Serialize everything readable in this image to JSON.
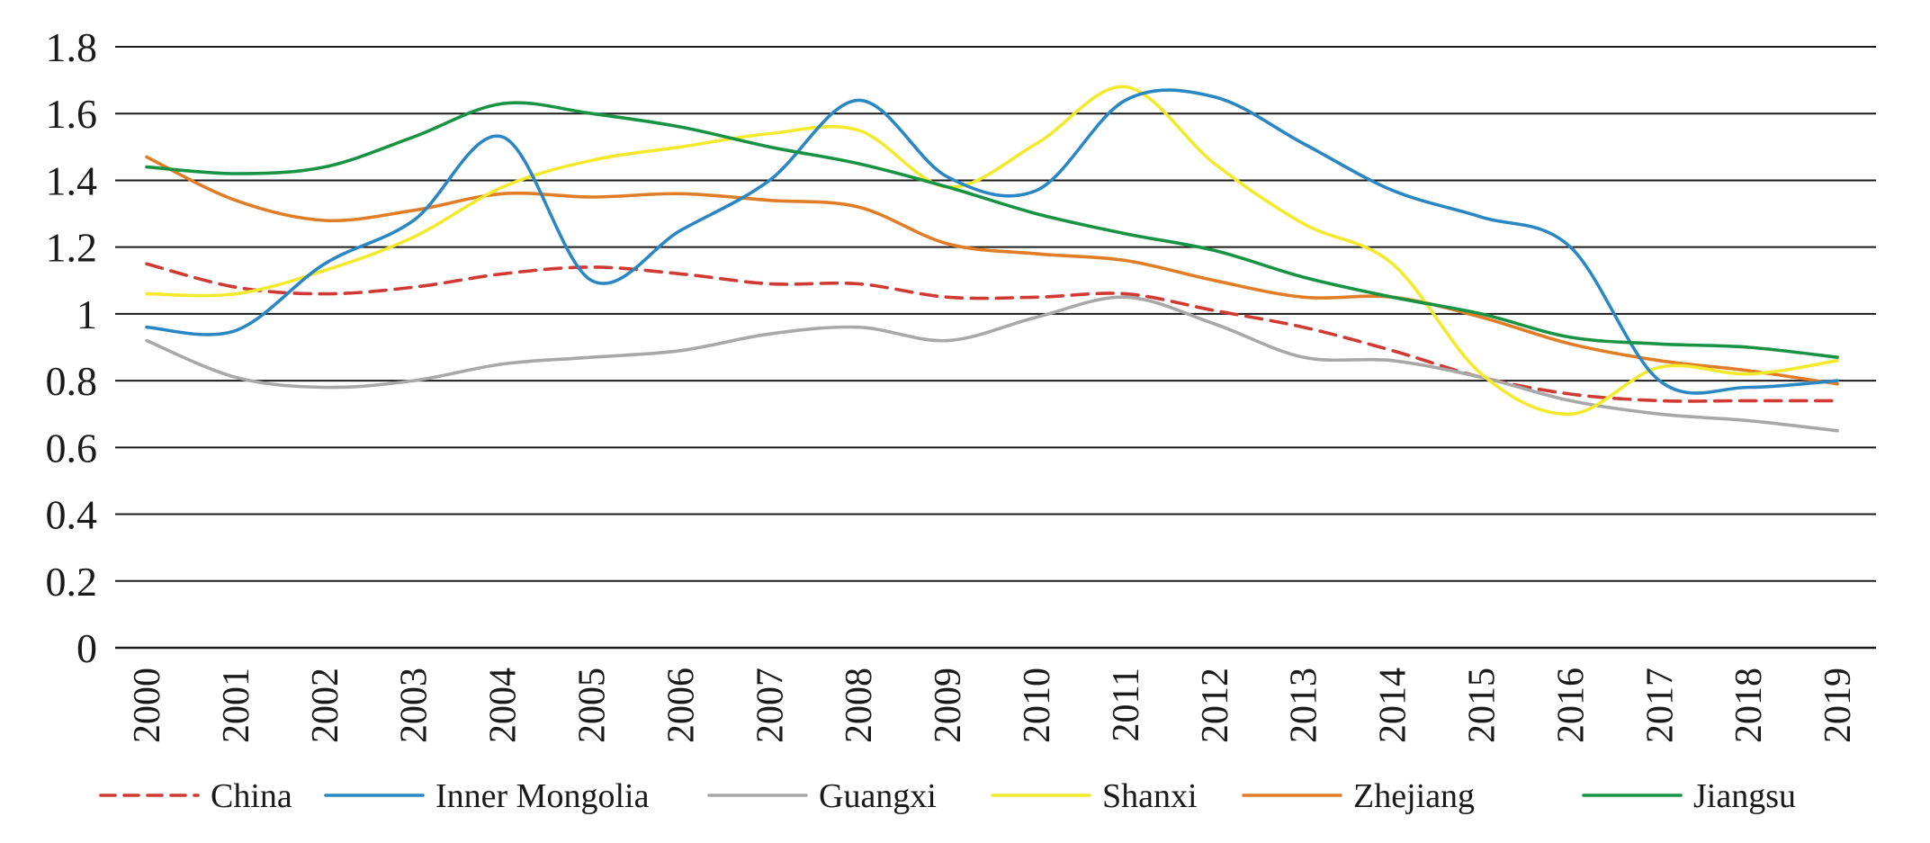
{
  "chart_data": {
    "type": "line",
    "title": "",
    "xlabel": "",
    "ylabel": "",
    "ylim": [
      0,
      1.8
    ],
    "yticks": [
      "0",
      "0.2",
      "0.4",
      "0.6",
      "0.8",
      "1",
      "1.2",
      "1.4",
      "1.6",
      "1.8"
    ],
    "grid": true,
    "legend_position": "bottom",
    "categories": [
      "2000",
      "2001",
      "2002",
      "2003",
      "2004",
      "2005",
      "2006",
      "2007",
      "2008",
      "2009",
      "2010",
      "2011",
      "2012",
      "2013",
      "2014",
      "2015",
      "2016",
      "2017",
      "2018",
      "2019"
    ],
    "series": [
      {
        "name": "China",
        "color": "#d03a33",
        "dash": true,
        "values": [
          1.15,
          1.08,
          1.06,
          1.08,
          1.12,
          1.14,
          1.12,
          1.09,
          1.09,
          1.05,
          1.05,
          1.06,
          1.01,
          0.96,
          0.89,
          0.81,
          0.76,
          0.74,
          0.74,
          0.74
        ]
      },
      {
        "name": "Inner Mongolia",
        "color": "#2b87c4",
        "dash": false,
        "values": [
          0.96,
          0.95,
          1.15,
          1.28,
          1.53,
          1.1,
          1.25,
          1.4,
          1.64,
          1.41,
          1.37,
          1.64,
          1.65,
          1.51,
          1.37,
          1.29,
          1.2,
          0.8,
          0.78,
          0.8
        ]
      },
      {
        "name": "Guangxi",
        "color": "#a8a8a8",
        "dash": false,
        "values": [
          0.92,
          0.81,
          0.78,
          0.8,
          0.85,
          0.87,
          0.89,
          0.94,
          0.96,
          0.92,
          0.99,
          1.05,
          0.97,
          0.87,
          0.86,
          0.81,
          0.74,
          0.7,
          0.68,
          0.65
        ]
      },
      {
        "name": "Shanxi",
        "color": "#f3e92d",
        "dash": false,
        "values": [
          1.06,
          1.06,
          1.13,
          1.23,
          1.38,
          1.46,
          1.5,
          1.54,
          1.55,
          1.38,
          1.51,
          1.68,
          1.45,
          1.27,
          1.15,
          0.82,
          0.7,
          0.84,
          0.82,
          0.86
        ]
      },
      {
        "name": "Zhejiang",
        "color": "#e07d26",
        "dash": false,
        "values": [
          1.47,
          1.34,
          1.28,
          1.31,
          1.36,
          1.35,
          1.36,
          1.34,
          1.32,
          1.21,
          1.18,
          1.16,
          1.1,
          1.05,
          1.05,
          0.99,
          0.91,
          0.86,
          0.83,
          0.79
        ]
      },
      {
        "name": "Jiangsu",
        "color": "#189343",
        "dash": false,
        "values": [
          1.44,
          1.42,
          1.44,
          1.53,
          1.63,
          1.6,
          1.56,
          1.5,
          1.45,
          1.38,
          1.3,
          1.24,
          1.19,
          1.11,
          1.05,
          1.0,
          0.93,
          0.91,
          0.9,
          0.87
        ]
      }
    ]
  }
}
